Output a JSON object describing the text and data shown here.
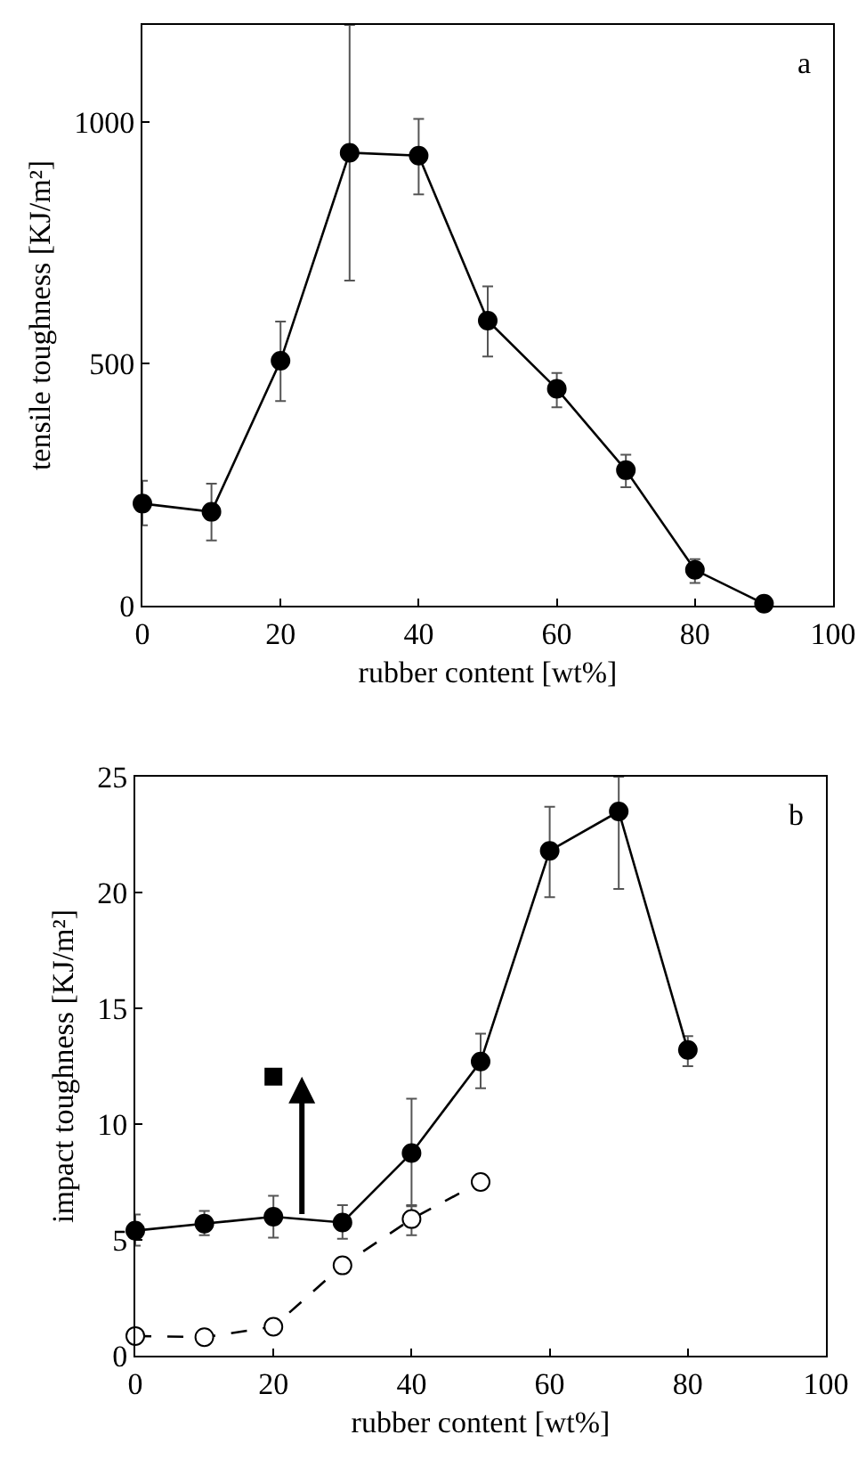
{
  "chart_data": [
    {
      "type": "line",
      "xlabel": "rubber content [wt%]",
      "ylabel": "tensile toughness [KJ/m²]",
      "annotations": [
        "a"
      ],
      "xlim": [
        0,
        100
      ],
      "xticks": [
        0,
        20,
        40,
        60,
        80,
        100
      ],
      "ylim": [
        0,
        1200
      ],
      "yticks": [
        0,
        500,
        1000
      ],
      "x": [
        0,
        10,
        20,
        30,
        40,
        50,
        60,
        70,
        80,
        90
      ],
      "series": [
        {
          "color": "#000000",
          "marker": "circle",
          "line_style": "solid",
          "values": [
            211,
            194,
            506,
            936,
            930,
            589,
            448,
            280,
            74,
            4
          ],
          "errors": [
            [
              166,
              258
            ],
            [
              135,
              252
            ],
            [
              423,
              587
            ],
            [
              672,
              1200
            ],
            [
              850,
              1006
            ],
            [
              515,
              660
            ],
            [
              410,
              481
            ],
            [
              245,
              312
            ],
            [
              47,
              96
            ],
            null
          ]
        }
      ]
    },
    {
      "type": "line",
      "xlabel": "rubber content [wt%]",
      "ylabel": "impact toughness [KJ/m²]",
      "annotations": [
        "b"
      ],
      "xlim": [
        0,
        100
      ],
      "xticks": [
        0,
        20,
        40,
        60,
        80,
        100
      ],
      "ylim": [
        0,
        25
      ],
      "yticks": [
        0,
        5,
        10,
        15,
        20,
        25
      ],
      "x": [
        0,
        10,
        20,
        30,
        40,
        50,
        60,
        70,
        80
      ],
      "series": [
        {
          "color": "#000000",
          "marker": "circle",
          "line_style": "solid",
          "values": [
            5.4,
            5.7,
            6.0,
            5.75,
            8.75,
            12.7,
            21.8,
            23.5,
            13.2
          ],
          "errors": [
            [
              4.75,
              6.1
            ],
            [
              5.2,
              6.25
            ],
            [
              5.1,
              6.9
            ],
            [
              5.05,
              6.5
            ],
            [
              6.45,
              11.1
            ],
            [
              11.55,
              13.9
            ],
            [
              19.8,
              23.7
            ],
            [
              20.15,
              25
            ],
            [
              12.5,
              13.8
            ]
          ]
        },
        {
          "color": "#000000",
          "marker": "circle",
          "line_style": "dashed",
          "x": [
            0,
            10,
            20,
            30,
            40,
            50
          ],
          "values": [
            0.85,
            0.8,
            1.25,
            3.9,
            5.9,
            7.5
          ],
          "errors": [
            null,
            null,
            null,
            null,
            [
              5.2,
              6.5
            ],
            null
          ]
        },
        {
          "type": "scatter",
          "color": "#000000",
          "marker": "square",
          "x": [
            20
          ],
          "values": [
            12.05
          ]
        }
      ]
    }
  ]
}
